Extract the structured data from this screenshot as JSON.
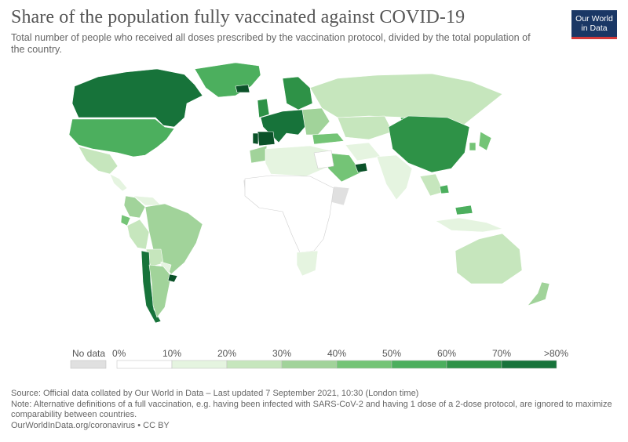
{
  "header": {
    "title": "Share of the population fully vaccinated against COVID-19",
    "subtitle": "Total number of people who received all doses prescribed by the vaccination protocol, divided by the total population of the country.",
    "logo_line1": "Our World",
    "logo_line2": "in Data"
  },
  "legend": {
    "no_data_label": "No data",
    "bins": [
      "0%",
      "10%",
      "20%",
      "30%",
      "40%",
      "50%",
      "60%",
      "70%",
      ">80%"
    ],
    "colors": [
      "#ffffff",
      "#e5f4e0",
      "#c6e6bd",
      "#a1d39a",
      "#74c476",
      "#4caf5e",
      "#2e9247",
      "#17733a",
      "#0b5229"
    ],
    "no_data_color": "#e0e0e0"
  },
  "footer": {
    "source": "Source: Official data collated by Our World in Data – Last updated 7 September 2021, 10:30 (London time)",
    "note": "Note: Alternative definitions of a full vaccination, e.g. having been infected with SARS-CoV-2 and having 1 dose of a 2-dose protocol, are ignored to maximize comparability between countries.",
    "link": "OurWorldInData.org/coronavirus",
    "license": "CC BY"
  },
  "map_data": {
    "type": "choropleth",
    "regions": [
      {
        "name": "Greenland",
        "bin": 5
      },
      {
        "name": "Canada",
        "bin": 7
      },
      {
        "name": "United States",
        "bin": 5
      },
      {
        "name": "Mexico",
        "bin": 2
      },
      {
        "name": "Central America",
        "bin": 1
      },
      {
        "name": "Colombia",
        "bin": 3
      },
      {
        "name": "Venezuela",
        "bin": 1
      },
      {
        "name": "Ecuador",
        "bin": 4
      },
      {
        "name": "Peru",
        "bin": 2
      },
      {
        "name": "Brazil",
        "bin": 3
      },
      {
        "name": "Bolivia",
        "bin": 2
      },
      {
        "name": "Paraguay",
        "bin": 1
      },
      {
        "name": "Chile",
        "bin": 7
      },
      {
        "name": "Argentina",
        "bin": 3
      },
      {
        "name": "Uruguay",
        "bin": 8
      },
      {
        "name": "Iceland",
        "bin": 8
      },
      {
        "name": "Scandinavia",
        "bin": 6
      },
      {
        "name": "United Kingdom",
        "bin": 6
      },
      {
        "name": "Western Europe",
        "bin": 7
      },
      {
        "name": "Spain",
        "bin": 8
      },
      {
        "name": "Portugal",
        "bin": 8
      },
      {
        "name": "Eastern Europe",
        "bin": 3
      },
      {
        "name": "Russia",
        "bin": 2
      },
      {
        "name": "Turkey",
        "bin": 4
      },
      {
        "name": "Kazakhstan",
        "bin": 2
      },
      {
        "name": "Iran",
        "bin": 1
      },
      {
        "name": "Saudi Arabia",
        "bin": 4
      },
      {
        "name": "United Arab Emirates",
        "bin": 8
      },
      {
        "name": "India",
        "bin": 1
      },
      {
        "name": "China",
        "bin": 6
      },
      {
        "name": "Mongolia",
        "bin": 5
      },
      {
        "name": "Japan",
        "bin": 4
      },
      {
        "name": "South Korea",
        "bin": 4
      },
      {
        "name": "Southeast Asia",
        "bin": 2
      },
      {
        "name": "Cambodia",
        "bin": 5
      },
      {
        "name": "Malaysia",
        "bin": 5
      },
      {
        "name": "Indonesia",
        "bin": 1
      },
      {
        "name": "Australia",
        "bin": 2
      },
      {
        "name": "New Zealand",
        "bin": 3
      },
      {
        "name": "North Africa",
        "bin": 1
      },
      {
        "name": "Morocco",
        "bin": 3
      },
      {
        "name": "Sub-Saharan Africa",
        "bin": 0
      },
      {
        "name": "South Africa",
        "bin": 1
      },
      {
        "name": "Egypt",
        "bin": 0
      },
      {
        "name": "Horn of Africa",
        "bin": -1
      },
      {
        "name": "Mauritania",
        "bin": -1
      }
    ]
  }
}
